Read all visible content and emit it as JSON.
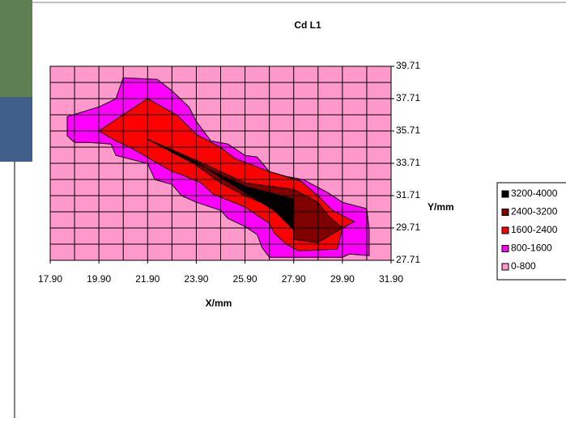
{
  "chart_data": {
    "type": "contour",
    "title": "Cd L1",
    "x_label": "X/mm",
    "y_label": "Y/mm",
    "xlim": [
      17.9,
      31.9
    ],
    "ylim": [
      27.71,
      39.71
    ],
    "xticks": [
      {
        "value": 17.9,
        "label": "17.90"
      },
      {
        "value": 19.9,
        "label": "19.90"
      },
      {
        "value": 21.9,
        "label": "21.90"
      },
      {
        "value": 23.9,
        "label": "23.90"
      },
      {
        "value": 25.9,
        "label": "25.90"
      },
      {
        "value": 27.9,
        "label": "27.90"
      },
      {
        "value": 29.9,
        "label": "29.90"
      },
      {
        "value": 31.9,
        "label": "31.90"
      }
    ],
    "yticks": [
      27.71,
      29.71,
      31.71,
      33.71,
      35.71,
      37.71,
      39.71
    ],
    "xminorticks": [
      18.9,
      20.9,
      22.9,
      24.9,
      26.9,
      28.9,
      30.9
    ],
    "yminorticks": [
      28.71,
      30.71,
      32.71,
      34.71,
      36.71,
      38.71
    ],
    "grid": true,
    "legend_position": "right",
    "series": [
      {
        "name": "3200-4000",
        "color": "#000000",
        "x": [
          21.9,
          23.9,
          25.9,
          27.9,
          27.9,
          27.1,
          25.9,
          23.9
        ],
        "y": [
          35.2,
          33.7,
          32.3,
          31.5,
          29.6,
          30.8,
          31.9,
          33.8
        ]
      },
      {
        "name": "2400-3200",
        "color": "#800000",
        "x": [
          21.9,
          23.9,
          25.9,
          26.9,
          27.9,
          28.9,
          29.3,
          29.9,
          28.9,
          27.9,
          27.9,
          27.4,
          26.7,
          25.9,
          24.9,
          23.9
        ],
        "y": [
          35.2,
          33.9,
          32.5,
          32.3,
          32.1,
          31.3,
          30.5,
          29.71,
          28.8,
          29.0,
          29.6,
          30.5,
          31.2,
          31.7,
          32.5,
          33.6
        ]
      },
      {
        "name": "1600-2400",
        "color": "#ff0000",
        "x": [
          19.9,
          21.9,
          23.1,
          23.9,
          24.9,
          25.5,
          26.9,
          28.2,
          28.9,
          29.5,
          30.4,
          29.9,
          29.7,
          28.1,
          27.6,
          27.1,
          26.9,
          26.2,
          25.9,
          24.6,
          24.1,
          23.3,
          22.9,
          22.1,
          21.3,
          20.6
        ],
        "y": [
          35.71,
          37.71,
          36.7,
          35.5,
          34.7,
          34.0,
          33.2,
          32.6,
          31.7,
          30.8,
          30.1,
          29.71,
          28.4,
          28.3,
          28.7,
          29.4,
          30.0,
          30.7,
          31.0,
          31.8,
          32.5,
          33.0,
          33.2,
          33.9,
          34.6,
          35.1
        ]
      },
      {
        "name": "800-1600",
        "color": "#ff00ff",
        "x": [
          20.9,
          22.3,
          22.9,
          23.6,
          23.9,
          24.5,
          25.2,
          25.9,
          26.4,
          26.9,
          27.6,
          28.3,
          29.3,
          29.9,
          30.9,
          31.0,
          31.0,
          30.2,
          29.9,
          26.9,
          26.6,
          26.4,
          25.9,
          25.2,
          24.9,
          23.9,
          23.3,
          22.9,
          22.2,
          21.9,
          21.1,
          20.6,
          20.4,
          19.5,
          18.9,
          18.6,
          18.6,
          19.9,
          20.6
        ],
        "y": [
          39.0,
          38.9,
          38.2,
          37.2,
          36.3,
          35.1,
          34.9,
          34.2,
          34.1,
          33.2,
          32.9,
          32.7,
          31.9,
          31.3,
          30.9,
          29.6,
          28.0,
          28.1,
          27.9,
          27.9,
          28.5,
          29.3,
          29.8,
          30.3,
          30.8,
          31.3,
          31.7,
          32.4,
          32.7,
          33.7,
          34.0,
          34.2,
          34.9,
          35.0,
          35.0,
          35.4,
          36.6,
          37.2,
          37.7
        ]
      },
      {
        "name": "0-800",
        "color": "#ff99cc",
        "x": [
          17.9,
          31.9,
          31.9,
          17.9
        ],
        "y": [
          27.71,
          27.71,
          39.71,
          39.71
        ]
      }
    ]
  }
}
